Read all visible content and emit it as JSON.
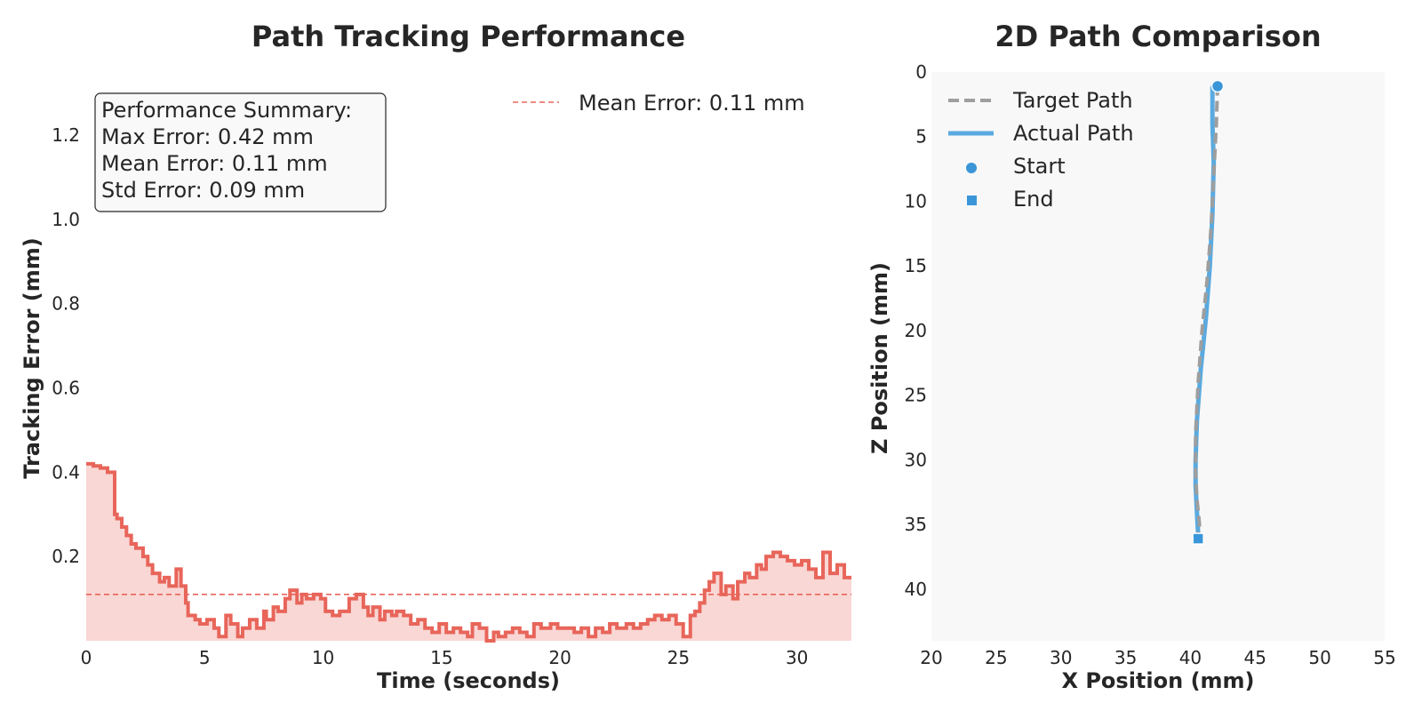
{
  "chart_data": [
    {
      "type": "line",
      "title": "Path Tracking Performance",
      "xlabel": "Time (seconds)",
      "ylabel": "Tracking Error (mm)",
      "xlim": [
        0,
        32.3
      ],
      "ylim": [
        0,
        1.35
      ],
      "xticks": [
        0,
        5,
        10,
        15,
        20,
        25,
        30
      ],
      "yticks": [
        0.2,
        0.4,
        0.6,
        0.8,
        1.0,
        1.2
      ],
      "ytick_labels": [
        "0.2",
        "0.4",
        "0.6",
        "0.8",
        "1.0",
        "1.2"
      ],
      "grid": false,
      "legend_position": "top-right",
      "series": [
        {
          "role": "error",
          "color": "#e8655a",
          "fill_color": "#f9d7d5",
          "style": "step",
          "x": [
            0,
            0.3,
            0.6,
            0.9,
            1.2,
            1.3,
            1.5,
            1.7,
            1.9,
            2.1,
            2.4,
            2.6,
            2.8,
            3.1,
            3.3,
            3.5,
            3.8,
            4.0,
            4.2,
            4.3,
            4.6,
            4.8,
            5.1,
            5.4,
            5.6,
            5.9,
            6.1,
            6.4,
            6.6,
            6.9,
            7.2,
            7.5,
            7.6,
            7.9,
            8.1,
            8.4,
            8.6,
            8.9,
            9.1,
            9.3,
            9.6,
            9.9,
            10.1,
            10.4,
            10.7,
            11.1,
            11.4,
            11.7,
            11.9,
            12.1,
            12.4,
            12.6,
            12.9,
            13.1,
            13.4,
            13.7,
            14.0,
            14.3,
            14.6,
            14.9,
            15.2,
            15.5,
            15.8,
            16.1,
            16.3,
            16.6,
            16.9,
            17.2,
            17.4,
            17.7,
            18.0,
            18.3,
            18.6,
            18.9,
            19.2,
            19.6,
            19.9,
            20.2,
            20.6,
            20.9,
            21.2,
            21.5,
            21.8,
            22.1,
            22.4,
            22.8,
            23.1,
            23.4,
            23.7,
            24.0,
            24.3,
            24.6,
            24.9,
            25.2,
            25.5,
            25.7,
            25.9,
            26.1,
            26.3,
            26.5,
            26.8,
            27.0,
            27.3,
            27.5,
            27.8,
            28.0,
            28.3,
            28.5,
            28.7,
            29.0,
            29.3,
            29.6,
            29.9,
            30.2,
            30.5,
            30.8,
            31.1,
            31.4,
            31.7,
            32.0,
            32.3
          ],
          "y": [
            0.42,
            0.415,
            0.41,
            0.4,
            0.3,
            0.29,
            0.27,
            0.25,
            0.23,
            0.22,
            0.2,
            0.18,
            0.16,
            0.14,
            0.15,
            0.13,
            0.17,
            0.13,
            0.09,
            0.06,
            0.05,
            0.04,
            0.05,
            0.03,
            0.01,
            0.06,
            0.04,
            0.01,
            0.03,
            0.05,
            0.03,
            0.07,
            0.05,
            0.08,
            0.07,
            0.1,
            0.12,
            0.09,
            0.11,
            0.1,
            0.11,
            0.1,
            0.07,
            0.06,
            0.07,
            0.1,
            0.11,
            0.08,
            0.06,
            0.08,
            0.05,
            0.07,
            0.06,
            0.07,
            0.06,
            0.04,
            0.05,
            0.03,
            0.02,
            0.04,
            0.02,
            0.03,
            0.02,
            0.01,
            0.04,
            0.03,
            0.0,
            0.02,
            0.01,
            0.02,
            0.03,
            0.02,
            0.01,
            0.04,
            0.03,
            0.04,
            0.03,
            0.03,
            0.02,
            0.03,
            0.01,
            0.03,
            0.02,
            0.04,
            0.03,
            0.04,
            0.03,
            0.04,
            0.05,
            0.06,
            0.05,
            0.06,
            0.04,
            0.01,
            0.06,
            0.07,
            0.09,
            0.12,
            0.14,
            0.16,
            0.11,
            0.13,
            0.1,
            0.14,
            0.16,
            0.15,
            0.18,
            0.17,
            0.2,
            0.21,
            0.2,
            0.19,
            0.18,
            0.19,
            0.17,
            0.15,
            0.21,
            0.16,
            0.18,
            0.15,
            0.15
          ]
        },
        {
          "name": "Mean Error: 0.11 mm",
          "role": "mean",
          "color": "#e8655a",
          "style": "dashed",
          "x": [
            0,
            32.3
          ],
          "y": [
            0.11,
            0.11
          ]
        }
      ],
      "annotation": {
        "lines": [
          "Performance Summary:",
          "Max Error: 0.42 mm",
          "Mean Error: 0.11 mm",
          "Std Error: 0.09 mm"
        ],
        "position": "top-left"
      }
    },
    {
      "type": "line",
      "title": "2D Path Comparison",
      "xlabel": "X Position (mm)",
      "ylabel": "Z Position (mm)",
      "xlim": [
        20,
        55
      ],
      "ylim": [
        44,
        0
      ],
      "y_inverted": true,
      "xticks": [
        20,
        25,
        30,
        35,
        40,
        45,
        50,
        55
      ],
      "yticks": [
        0,
        5,
        10,
        15,
        20,
        25,
        30,
        35,
        40
      ],
      "grid": false,
      "background": "#f8f8f8",
      "legend_position": "top-left",
      "series": [
        {
          "name": "Target Path",
          "color": "#9e9e9e",
          "style": "dashed",
          "x": [
            42.1,
            42.0,
            41.8,
            41.6,
            41.3,
            40.9,
            40.6,
            40.4,
            40.4,
            40.5,
            40.7,
            40.6
          ],
          "y": [
            1,
            4,
            8,
            12,
            16,
            20,
            24,
            28,
            31,
            33,
            35,
            36
          ]
        },
        {
          "name": "Actual Path",
          "color": "#5aaae0",
          "style": "solid",
          "x": [
            41.7,
            41.7,
            41.8,
            41.7,
            41.5,
            41.2,
            40.8,
            40.5,
            40.4,
            40.4,
            40.5,
            40.6
          ],
          "y": [
            1.2,
            4,
            7,
            11,
            15,
            19,
            23,
            27,
            30,
            32,
            34,
            35.8
          ]
        },
        {
          "name": "Start",
          "color": "#3a96d8",
          "style": "marker-circle",
          "x": [
            42.1
          ],
          "y": [
            1.1
          ]
        },
        {
          "name": "End",
          "color": "#3a96d8",
          "style": "marker-square",
          "x": [
            40.6
          ],
          "y": [
            36.1
          ]
        }
      ]
    }
  ]
}
